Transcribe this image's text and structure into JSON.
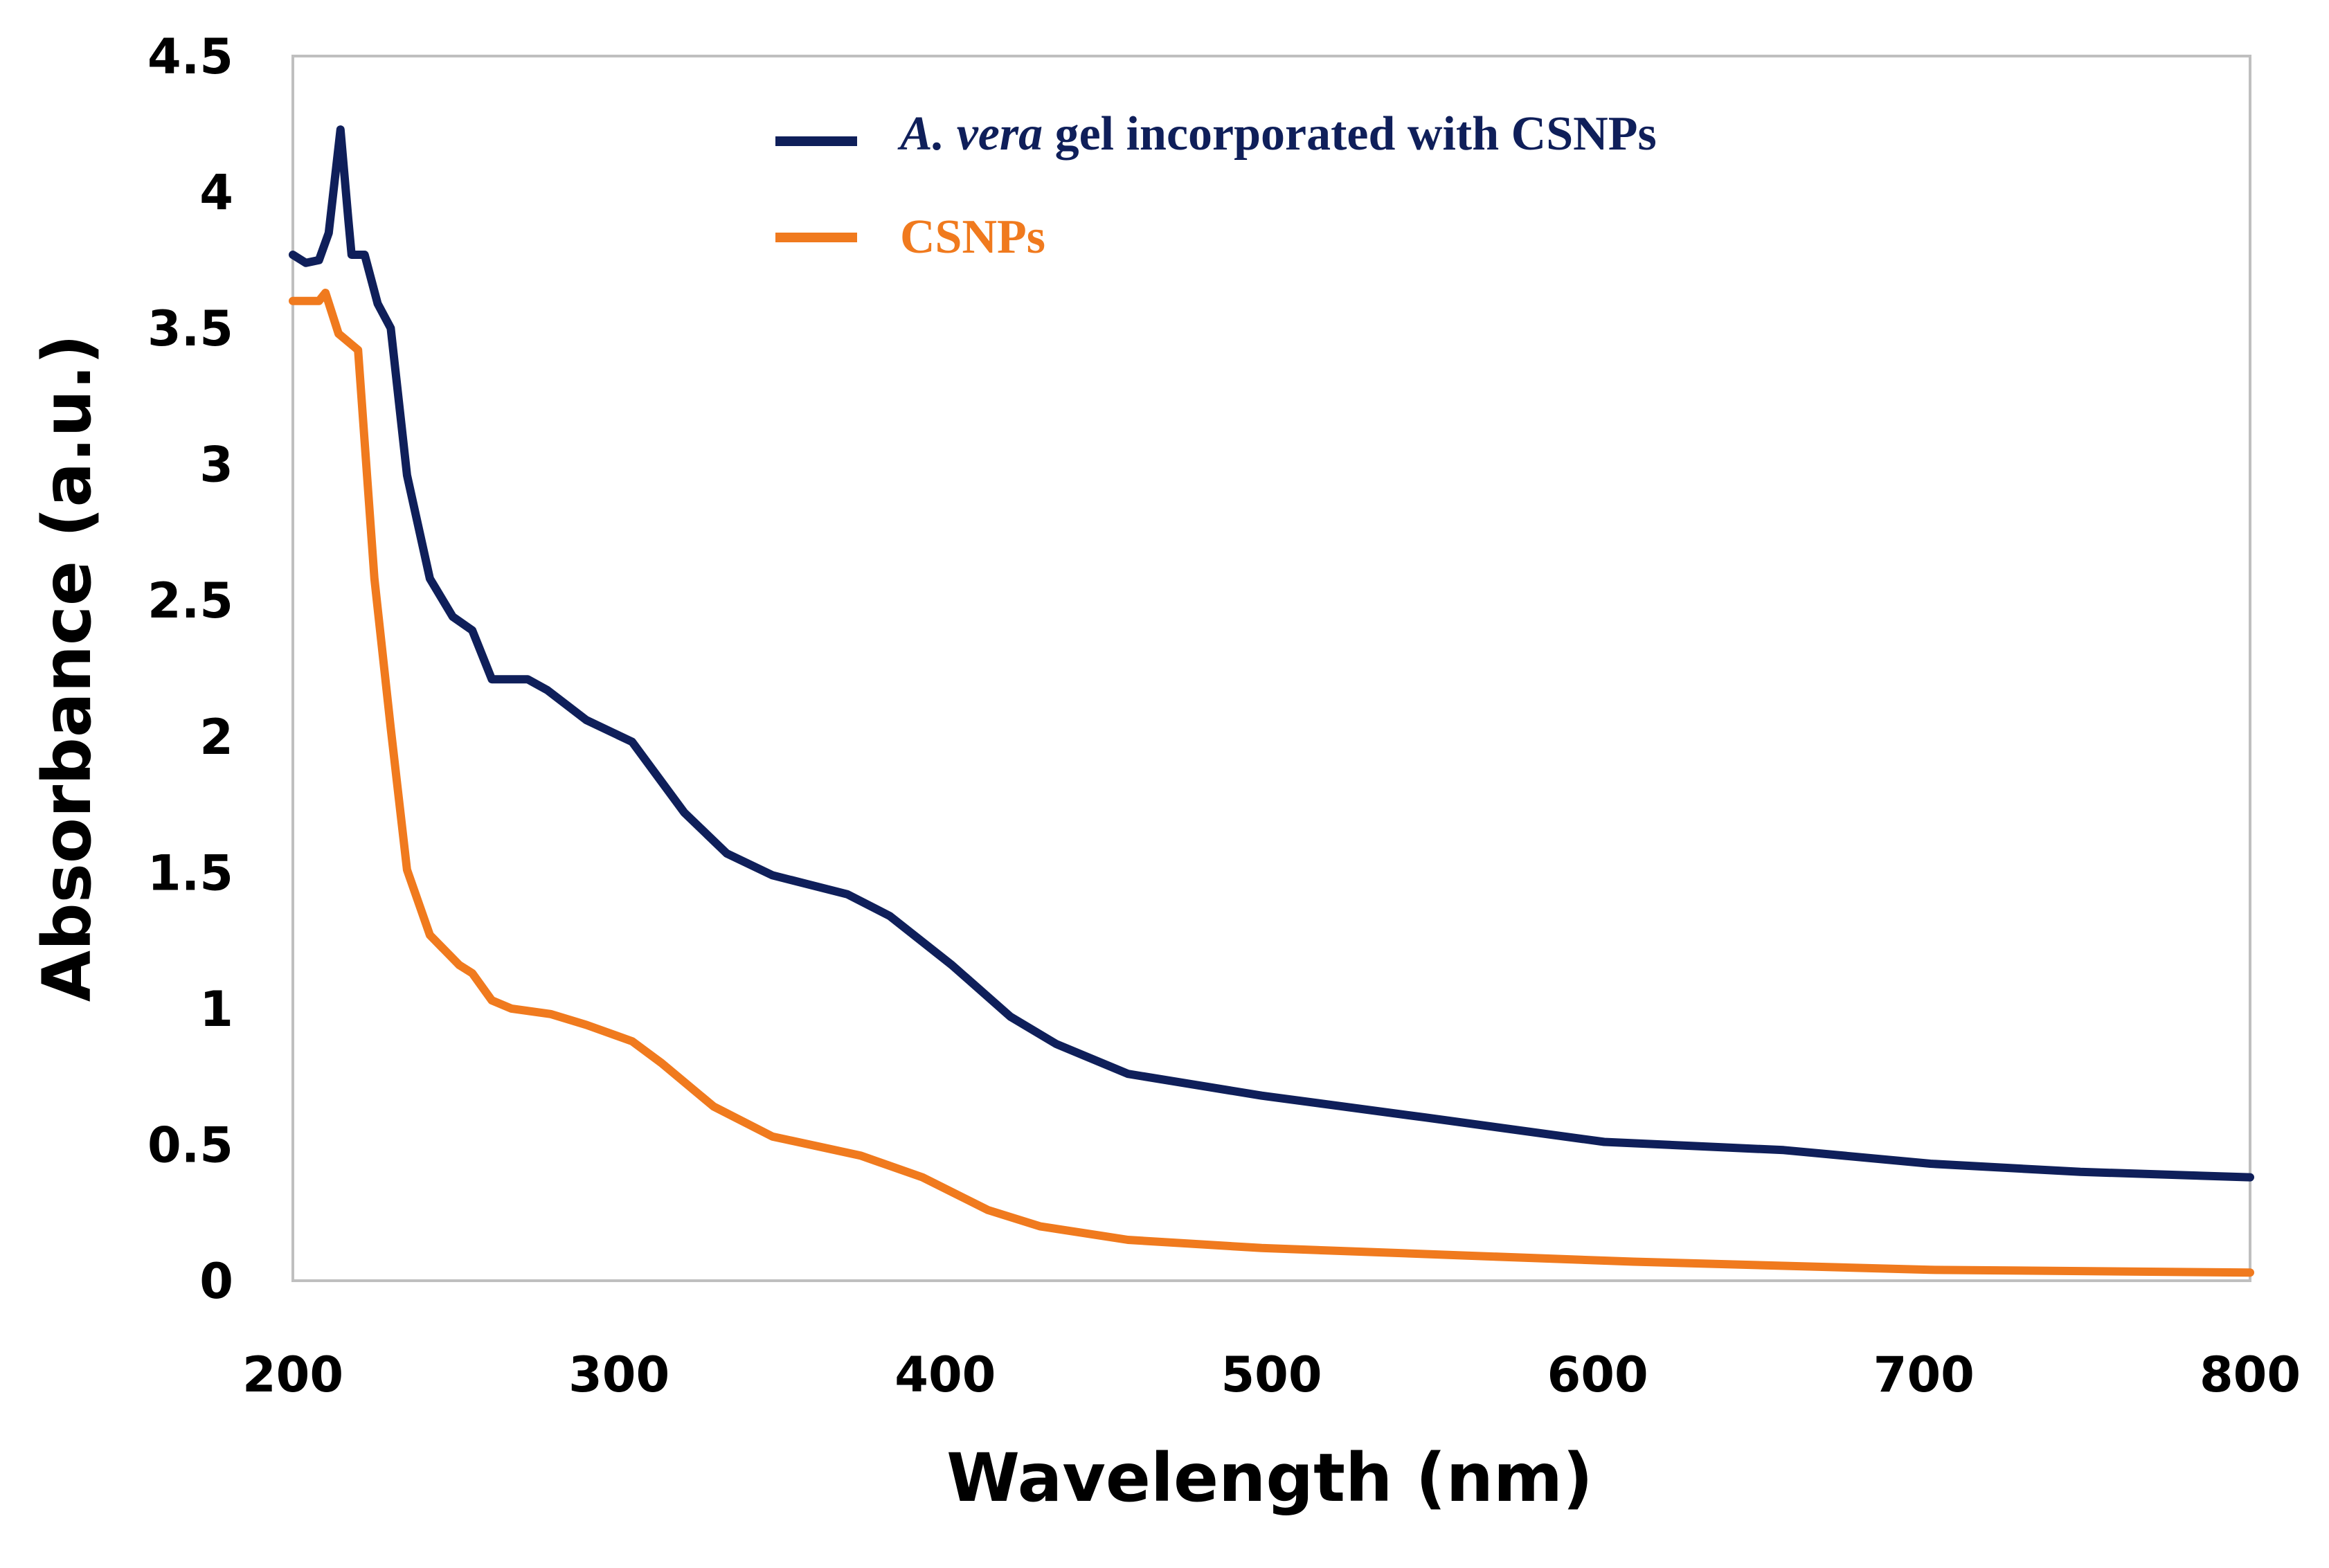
{
  "chart_data": {
    "type": "line",
    "title": "",
    "xlabel": "Wavelength (nm)",
    "ylabel": "Absorbance (a.u.)",
    "xlim": [
      200,
      800
    ],
    "ylim": [
      0,
      4.5
    ],
    "xticks": [
      "200",
      "300",
      "400",
      "500",
      "600",
      "700",
      "800"
    ],
    "yticks": [
      "0",
      "0.5",
      "1",
      "1.5",
      "2",
      "2.5",
      "3",
      "3.5",
      "4",
      "4.5"
    ],
    "grid": false,
    "legend_position": "top-center",
    "series": [
      {
        "name": "A. vera gel incorporated with CSNPs",
        "name_italic": "A. vera",
        "name_rest": " gel incorporated with CSNPs",
        "color": "#0f1f5a",
        "x": [
          200,
          204,
          208,
          211,
          214.6,
          217,
          218,
          222,
          226,
          230,
          235,
          242,
          249,
          255,
          261,
          272,
          278,
          290,
          304,
          320,
          333,
          347,
          370,
          383,
          402,
          420,
          434,
          456,
          497,
          547,
          602,
          657,
          702,
          748,
          800
        ],
        "y": [
          3.77,
          3.74,
          3.75,
          3.85,
          4.23,
          3.9,
          3.77,
          3.77,
          3.59,
          3.5,
          2.96,
          2.58,
          2.44,
          2.39,
          2.21,
          2.21,
          2.17,
          2.06,
          1.98,
          1.72,
          1.57,
          1.49,
          1.42,
          1.34,
          1.16,
          0.97,
          0.87,
          0.76,
          0.68,
          0.6,
          0.51,
          0.48,
          0.43,
          0.4,
          0.38
        ]
      },
      {
        "name": "CSNPs",
        "color": "#f07a1e",
        "x": [
          200,
          208,
          210,
          214,
          220,
          225,
          230,
          235,
          242,
          251,
          255,
          261,
          267,
          279,
          290,
          304,
          313,
          329,
          347,
          374,
          393,
          413,
          429,
          456,
          497,
          565,
          611,
          702,
          800
        ],
        "y": [
          3.6,
          3.6,
          3.63,
          3.48,
          3.42,
          2.58,
          2.03,
          1.51,
          1.27,
          1.16,
          1.13,
          1.03,
          1.0,
          0.98,
          0.94,
          0.88,
          0.8,
          0.64,
          0.53,
          0.46,
          0.38,
          0.26,
          0.2,
          0.15,
          0.12,
          0.09,
          0.07,
          0.04,
          0.03
        ]
      }
    ]
  }
}
